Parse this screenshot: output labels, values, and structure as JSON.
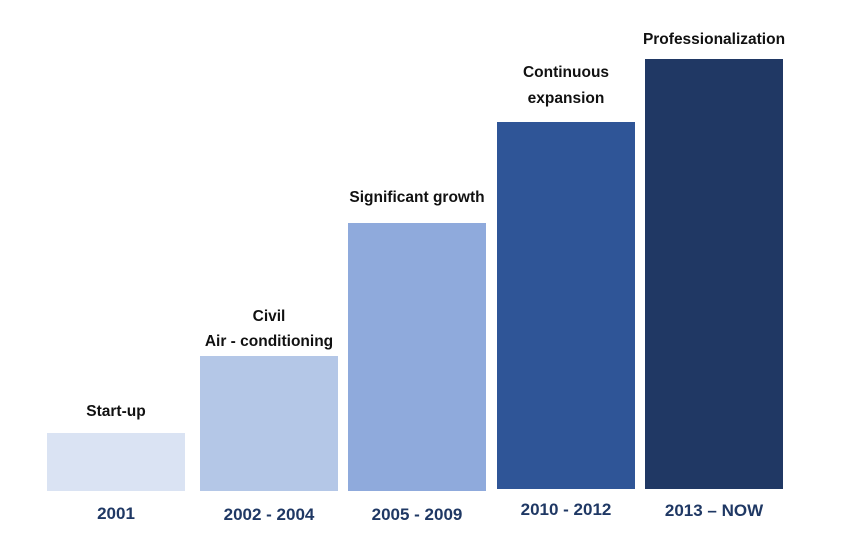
{
  "stages": [
    {
      "label_lines": [
        "Start-up"
      ],
      "period": "2001",
      "color": "#dae3f3"
    },
    {
      "label_lines": [
        "Civil",
        "Air - conditioning"
      ],
      "period": "2002 - 2004",
      "color": "#b4c7e7"
    },
    {
      "label_lines": [
        "Significant growth"
      ],
      "period": "2005 - 2009",
      "color": "#8faadc"
    },
    {
      "label_lines": [
        "Continuous",
        "expansion"
      ],
      "period": "2010 - 2012",
      "color": "#2f5597"
    },
    {
      "label_lines": [
        "Professionalization"
      ],
      "period": "2013 – NOW",
      "color": "#203864"
    }
  ],
  "period_text_color": "#1f3864"
}
